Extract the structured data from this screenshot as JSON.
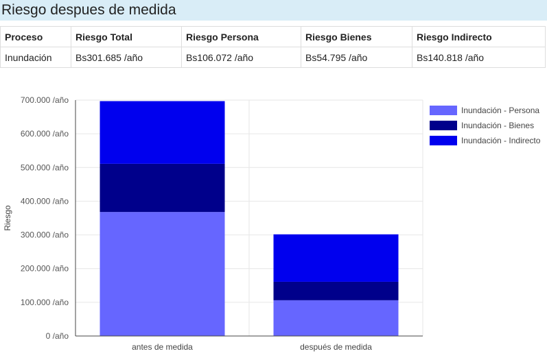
{
  "header": {
    "title": "Riesgo despues de medida"
  },
  "table": {
    "columns": [
      "Proceso",
      "Riesgo Total",
      "Riesgo Persona",
      "Riesgo Bienes",
      "Riesgo Indirecto"
    ],
    "rows": [
      [
        "Inundación",
        "Bs301.685 /año",
        "Bs106.072 /año",
        "Bs54.795 /año",
        "Bs140.818 /año"
      ]
    ]
  },
  "chart_data": {
    "type": "bar",
    "stacked": true,
    "categories": [
      "antes de medida",
      "después de medida"
    ],
    "series": [
      {
        "name": "Inundación - Persona",
        "color": "#6666ff",
        "values": [
          368000,
          106072
        ]
      },
      {
        "name": "Inundación - Bienes",
        "color": "#00008b",
        "values": [
          143000,
          54795
        ]
      },
      {
        "name": "Inundación - Indirecto",
        "color": "#0000ee",
        "values": [
          186000,
          140818
        ]
      }
    ],
    "ylabel": "Riesgo",
    "xlabel": "",
    "ylim": [
      0,
      700000
    ],
    "yticks": [
      0,
      100000,
      200000,
      300000,
      400000,
      500000,
      600000,
      700000
    ],
    "ytick_labels": [
      "0 /año",
      "100.000 /año",
      "200.000 /año",
      "300.000 /año",
      "400.000 /año",
      "500.000 /año",
      "600.000 /año",
      "700.000 /año"
    ],
    "grid": true,
    "legend": "right"
  }
}
